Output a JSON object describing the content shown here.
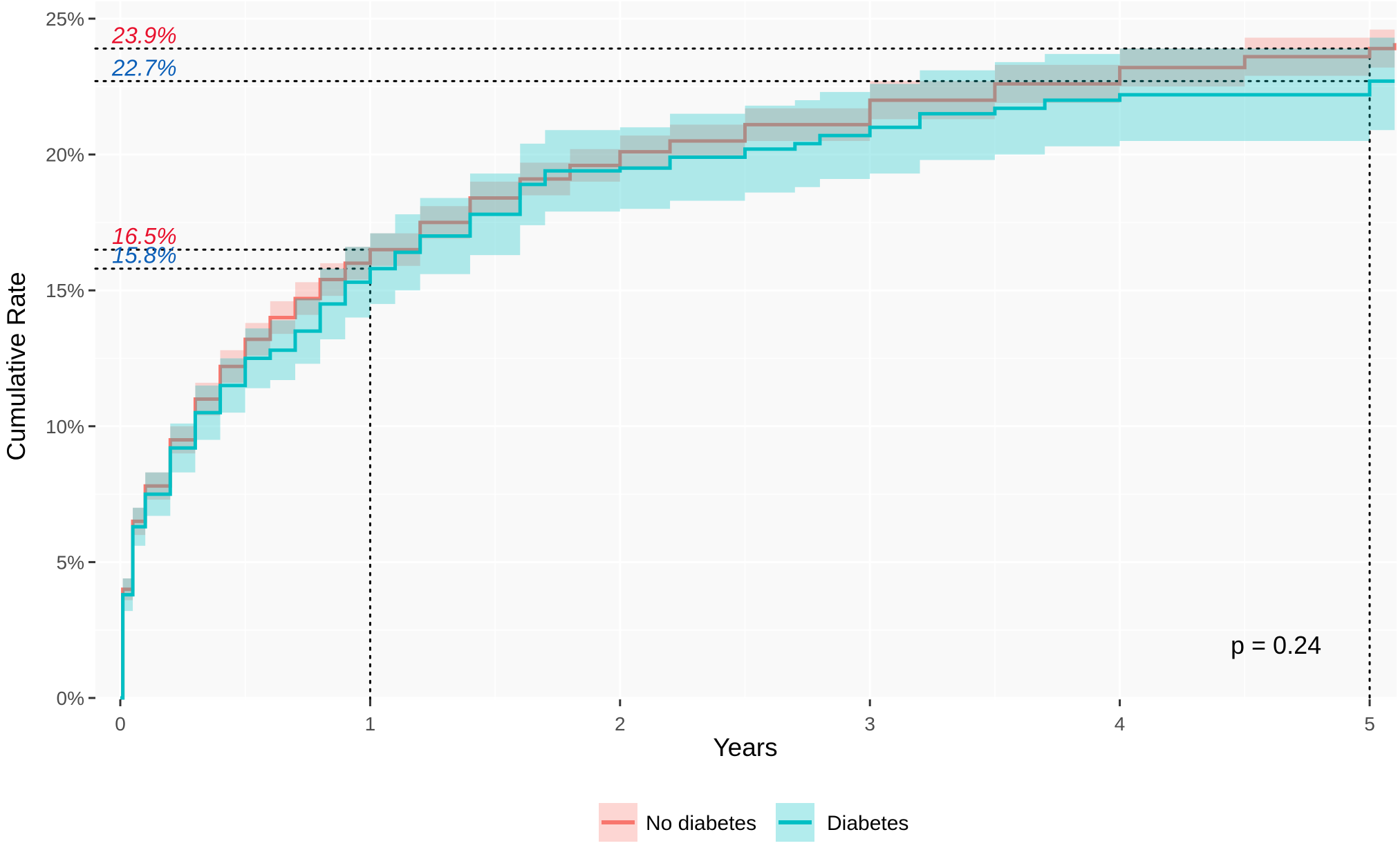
{
  "chart_data": {
    "type": "line",
    "title": "",
    "xlabel": "Years",
    "ylabel": "Cumulative Rate",
    "xlim": [
      -0.1,
      5.1
    ],
    "ylim": [
      0,
      25
    ],
    "x_ticks": [
      "0",
      "1",
      "2",
      "3",
      "4",
      "5"
    ],
    "y_ticks": [
      "0%",
      "5%",
      "10%",
      "15%",
      "20%",
      "25%"
    ],
    "grid": true,
    "step": true,
    "legend_position": "bottom",
    "annotation": "p = 0.24",
    "colors": {
      "No diabetes": "#F8766D",
      "Diabetes": "#00BFC4",
      "label_red": "#E8112D",
      "label_blue": "#0B5FB8"
    },
    "reference_labels": [
      {
        "text": "23.9%",
        "value": 23.9,
        "x": 5,
        "series": "No diabetes"
      },
      {
        "text": "22.7%",
        "value": 22.7,
        "x": 5,
        "series": "Diabetes"
      },
      {
        "text": "16.5%",
        "value": 16.5,
        "x": 1,
        "series": "No diabetes"
      },
      {
        "text": "15.8%",
        "value": 15.8,
        "x": 1,
        "series": "Diabetes"
      }
    ],
    "series": [
      {
        "name": "No diabetes",
        "x": [
          0,
          0.01,
          0.05,
          0.1,
          0.2,
          0.3,
          0.4,
          0.5,
          0.6,
          0.7,
          0.8,
          0.9,
          1.0,
          1.2,
          1.4,
          1.6,
          1.8,
          2.0,
          2.2,
          2.5,
          3.0,
          3.5,
          4.0,
          4.5,
          5.0,
          5.1
        ],
        "y": [
          0,
          4.0,
          6.5,
          7.8,
          9.5,
          11.0,
          12.2,
          13.2,
          14.0,
          14.7,
          15.4,
          16.0,
          16.5,
          17.5,
          18.4,
          19.1,
          19.6,
          20.1,
          20.5,
          21.1,
          22.0,
          22.6,
          23.2,
          23.6,
          23.9,
          24.1
        ],
        "lower": [
          0,
          3.6,
          6.0,
          7.3,
          9.0,
          10.4,
          11.6,
          12.6,
          13.4,
          14.1,
          14.8,
          15.4,
          15.9,
          16.9,
          17.8,
          18.5,
          19.0,
          19.5,
          19.9,
          20.5,
          21.3,
          21.9,
          22.5,
          22.9,
          23.2,
          23.4
        ],
        "upper": [
          0,
          4.4,
          7.0,
          8.3,
          10.0,
          11.6,
          12.8,
          13.8,
          14.6,
          15.3,
          16.0,
          16.6,
          17.1,
          18.1,
          19.0,
          19.7,
          20.2,
          20.7,
          21.1,
          21.7,
          22.7,
          23.3,
          23.9,
          24.3,
          24.6,
          24.8
        ]
      },
      {
        "name": "Diabetes",
        "x": [
          0,
          0.01,
          0.05,
          0.1,
          0.2,
          0.3,
          0.4,
          0.5,
          0.6,
          0.7,
          0.8,
          0.9,
          1.0,
          1.1,
          1.2,
          1.4,
          1.6,
          1.7,
          2.0,
          2.2,
          2.5,
          2.7,
          2.8,
          3.0,
          3.2,
          3.5,
          3.7,
          4.0,
          4.5,
          4.97,
          5.0,
          5.1
        ],
        "y": [
          0,
          3.8,
          6.3,
          7.5,
          9.2,
          10.5,
          11.5,
          12.5,
          12.8,
          13.5,
          14.5,
          15.3,
          15.8,
          16.4,
          17.0,
          17.8,
          18.9,
          19.4,
          19.5,
          19.9,
          20.2,
          20.4,
          20.7,
          21.0,
          21.5,
          21.7,
          22.0,
          22.2,
          22.2,
          22.2,
          22.7,
          22.7
        ],
        "lower": [
          0,
          3.2,
          5.6,
          6.7,
          8.3,
          9.5,
          10.5,
          11.4,
          11.7,
          12.3,
          13.2,
          14.0,
          14.5,
          15.0,
          15.6,
          16.3,
          17.4,
          17.9,
          18.0,
          18.3,
          18.6,
          18.8,
          19.1,
          19.3,
          19.8,
          20.0,
          20.3,
          20.5,
          20.5,
          20.5,
          20.9,
          20.9
        ],
        "upper": [
          0,
          4.4,
          7.0,
          8.3,
          10.1,
          11.5,
          12.5,
          13.6,
          13.9,
          14.7,
          15.8,
          16.6,
          17.1,
          17.8,
          18.4,
          19.3,
          20.4,
          20.9,
          21.0,
          21.5,
          21.8,
          22.0,
          22.3,
          22.6,
          23.1,
          23.4,
          23.7,
          23.9,
          23.9,
          23.9,
          24.3,
          24.3
        ]
      }
    ]
  }
}
